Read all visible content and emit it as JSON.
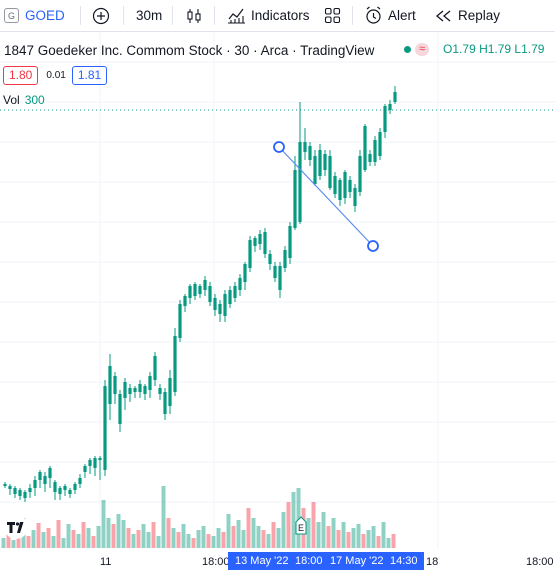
{
  "toolbar": {
    "symbol": "GOED",
    "timeframe": "30m",
    "indicators_label": "Indicators",
    "alert_label": "Alert",
    "replay_label": "Replay",
    "icons": [
      "symbol-logo-icon",
      "add-compare-icon",
      "candles-style-icon",
      "indicators-icon",
      "layout-icon",
      "alert-clock-icon",
      "replay-icon"
    ]
  },
  "legend": {
    "title": "1847 Goedeker Inc. Commom Stock · 30 · Arca · TradingView",
    "approx": "≈",
    "ohlc": "O1.79 H1.79 L1.79",
    "bid": "1.80",
    "spread": "0.01",
    "ask": "1.81",
    "vol_label": "Vol",
    "vol_value": "300"
  },
  "colors": {
    "up": "#089981",
    "down": "#f23645",
    "accent": "#2962ff"
  },
  "time_axis": {
    "ticks": [
      "11",
      "18:00",
      "18",
      "18:00"
    ],
    "range_labels": [
      "13 May '22",
      "18:00",
      "17 May '22",
      "14:30"
    ]
  },
  "chart_data": {
    "type": "candlestick",
    "title": "1847 Goedeker Inc. Commom Stock · 30 · Arca · TradingView",
    "last_price": 1.79,
    "price_line_level": 1.79,
    "event_marker": "E",
    "trend_line": {
      "from_price": 1.74,
      "to_price": 1.6,
      "note": "drawn line tool between two handles"
    }
  }
}
